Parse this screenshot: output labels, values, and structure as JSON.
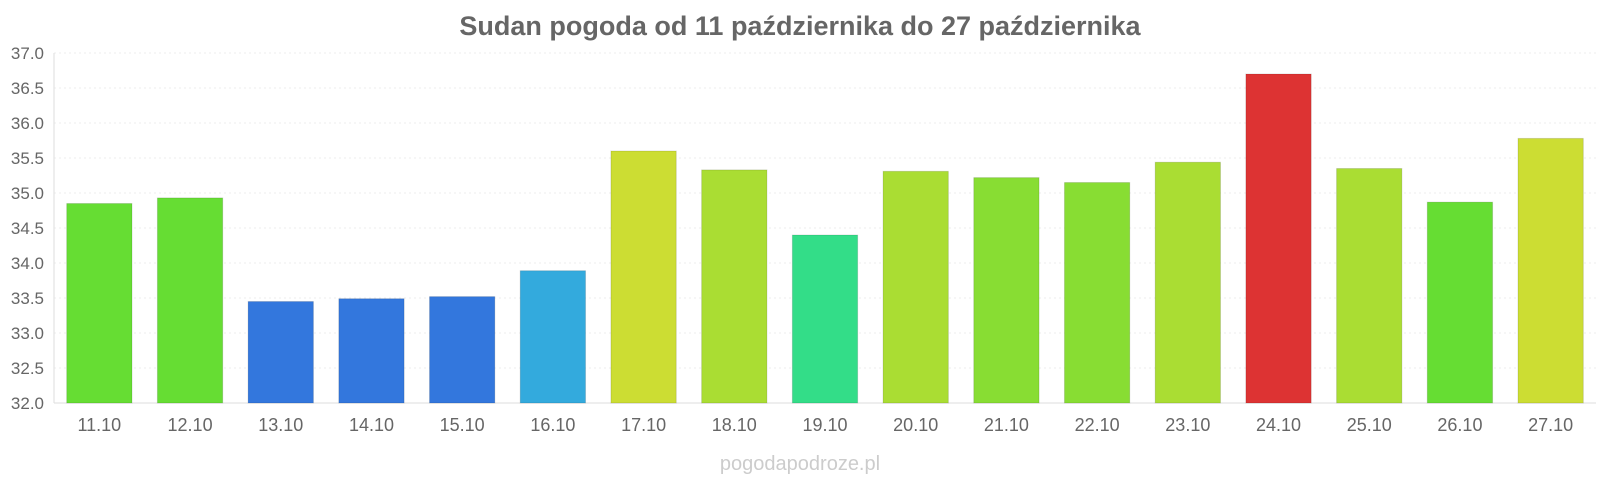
{
  "source_credit": "pogodapodroze.pl",
  "chart_data": {
    "type": "bar",
    "title": "Sudan pogoda od 11 października do 27 października",
    "xlabel": "",
    "ylabel": "",
    "ylim": [
      32.0,
      37.0
    ],
    "yticks": [
      "32.0",
      "32.5",
      "33.0",
      "33.5",
      "34.0",
      "34.5",
      "35.0",
      "35.5",
      "36.0",
      "36.5",
      "37.0"
    ],
    "grid": true,
    "legend": "none",
    "categories": [
      "11.10",
      "12.10",
      "13.10",
      "14.10",
      "15.10",
      "16.10",
      "17.10",
      "18.10",
      "19.10",
      "20.10",
      "21.10",
      "22.10",
      "23.10",
      "24.10",
      "25.10",
      "26.10",
      "27.10"
    ],
    "values": [
      34.85,
      34.93,
      33.45,
      33.49,
      33.52,
      33.89,
      35.6,
      35.33,
      34.4,
      35.31,
      35.22,
      35.15,
      35.44,
      36.7,
      35.35,
      34.87,
      35.78
    ],
    "colors": [
      "#66dd33",
      "#66dd33",
      "#3377dd",
      "#3377dd",
      "#3377dd",
      "#33aadd",
      "#ccdd33",
      "#aadd33",
      "#33dd88",
      "#aadd33",
      "#88dd33",
      "#88dd33",
      "#aadd33",
      "#dd3333",
      "#aadd33",
      "#66dd33",
      "#ccdd33"
    ]
  }
}
